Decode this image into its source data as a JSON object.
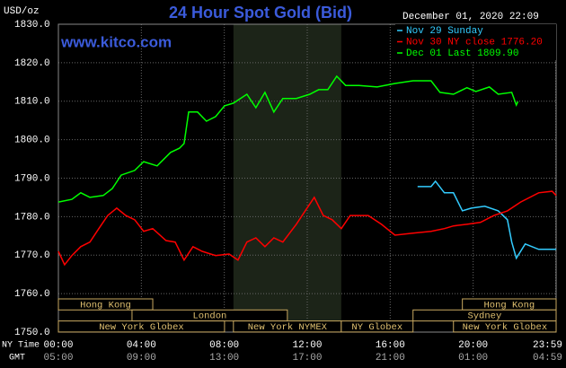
{
  "chart_data": {
    "type": "line",
    "title": "24 Hour Spot Gold (Bid)",
    "website": "www.kitco.com",
    "timestamp": "December 01, 2020 22:09",
    "y_label": "USD/oz",
    "x_label": "NY Time",
    "x2_label": "GMT",
    "xlim": [
      0,
      24
    ],
    "xticks": [
      {
        "value": 0,
        "label": "00:00"
      },
      {
        "value": 4,
        "label": "04:00"
      },
      {
        "value": 8,
        "label": "08:00"
      },
      {
        "value": 12,
        "label": "12:00"
      },
      {
        "value": 16,
        "label": "16:00"
      },
      {
        "value": 20,
        "label": "20:00"
      },
      {
        "value": 23.98,
        "label": "23:59"
      }
    ],
    "x2ticks": [
      {
        "value": 0,
        "label": "05:00"
      },
      {
        "value": 4,
        "label": "09:00"
      },
      {
        "value": 8,
        "label": "13:00"
      },
      {
        "value": 12,
        "label": "17:00"
      },
      {
        "value": 16,
        "label": "21:00"
      },
      {
        "value": 20,
        "label": "01:00"
      },
      {
        "value": 23.98,
        "label": "04:59"
      }
    ],
    "ylim": [
      1750,
      1830
    ],
    "yticks": [
      {
        "value": 1750,
        "label": "1750.0"
      },
      {
        "value": 1760,
        "label": "1760.0"
      },
      {
        "value": 1770,
        "label": "1770.0"
      },
      {
        "value": 1780,
        "label": "1780.0"
      },
      {
        "value": 1790,
        "label": "1790.0"
      },
      {
        "value": 1800,
        "label": "1800.0"
      },
      {
        "value": 1810,
        "label": "1810.0"
      },
      {
        "value": 1820,
        "label": "1820.0"
      },
      {
        "value": 1830,
        "label": "1830.0"
      }
    ],
    "grid": true,
    "shaded_range": [
      8.44,
      13.64
    ],
    "sessions": [
      {
        "label": "Hong Kong",
        "row": 0,
        "start": 0,
        "end": 4.55
      },
      {
        "label": "Hong Kong",
        "row": 0,
        "start": 19.48,
        "end": 24
      },
      {
        "label": "London",
        "row": 1,
        "start": 3.55,
        "end": 11.04
      },
      {
        "label": "Sydney",
        "row": 1,
        "start": 17.1,
        "end": 24
      },
      {
        "label": "New York Globex",
        "row": 2,
        "start": 0,
        "end": 8.01
      },
      {
        "label": "New York NYMEX",
        "row": 2,
        "start": 8.44,
        "end": 13.64
      },
      {
        "label": "NY Globex",
        "row": 2,
        "start": 13.64,
        "end": 17.1
      },
      {
        "label": "New York Globex",
        "row": 2,
        "start": 19.05,
        "end": 24
      }
    ],
    "series": [
      {
        "name": "Nov 29 Sunday",
        "color": "#33ccff",
        "x": [
          17.32,
          17.97,
          18.18,
          18.61,
          19.05,
          19.48,
          19.91,
          20.56,
          21.21,
          21.65,
          21.86,
          22.08,
          22.51,
          23.16,
          24
        ],
        "values": [
          1787.8,
          1787.8,
          1789.2,
          1786.2,
          1786.2,
          1781.5,
          1782.2,
          1782.7,
          1781.5,
          1779.2,
          1773.4,
          1769.2,
          1772.9,
          1771.5,
          1771.5
        ]
      },
      {
        "name": "Nov 30 NY close 1776.20",
        "color": "#ff0000",
        "x": [
          0,
          0.3,
          0.65,
          1.08,
          1.52,
          1.95,
          2.38,
          2.81,
          3.25,
          3.68,
          4.11,
          4.55,
          5.19,
          5.63,
          6.06,
          6.49,
          6.93,
          7.58,
          8.23,
          8.66,
          9.09,
          9.52,
          9.96,
          10.39,
          10.82,
          11.47,
          11.9,
          12.34,
          12.77,
          13.2,
          13.64,
          14.07,
          14.94,
          15.58,
          16.23,
          17.1,
          17.97,
          18.61,
          19.05,
          19.7,
          20.35,
          21,
          21.65,
          22.29,
          23.16,
          23.81,
          24
        ],
        "values": [
          1771,
          1767.5,
          1769.9,
          1772.2,
          1773.4,
          1776.9,
          1780.3,
          1782.2,
          1780.3,
          1779.2,
          1776.2,
          1776.9,
          1773.8,
          1773.4,
          1768.7,
          1772.2,
          1771,
          1769.9,
          1770.3,
          1768.7,
          1773.4,
          1774.5,
          1772.2,
          1774.5,
          1773.4,
          1778,
          1781.5,
          1785,
          1780.3,
          1779.2,
          1776.9,
          1780.3,
          1780.3,
          1778,
          1775.2,
          1775.7,
          1776.2,
          1776.9,
          1777.6,
          1778,
          1778.5,
          1780.3,
          1781.5,
          1783.8,
          1786.2,
          1786.6,
          1785.5
        ]
      },
      {
        "name": "Dec 01 Last 1809.90",
        "color": "#00ff00",
        "x": [
          0,
          0.65,
          1.08,
          1.52,
          2.16,
          2.6,
          3.03,
          3.68,
          4.11,
          4.76,
          5.41,
          5.84,
          6.06,
          6.28,
          6.71,
          7.14,
          7.58,
          8.01,
          8.44,
          9.09,
          9.52,
          9.96,
          10.39,
          10.82,
          11.47,
          12.12,
          12.55,
          12.99,
          13.42,
          13.85,
          14.5,
          15.37,
          16.23,
          17.1,
          17.97,
          18.4,
          19.05,
          19.7,
          20.13,
          20.78,
          21.21,
          21.86,
          22.08,
          22.16
        ],
        "values": [
          1783.8,
          1784.5,
          1786.2,
          1785,
          1785.5,
          1787.3,
          1790.8,
          1792,
          1794.3,
          1793.2,
          1796.7,
          1797.8,
          1799,
          1807.2,
          1807.2,
          1804.8,
          1806,
          1808.8,
          1809.5,
          1811.8,
          1808.3,
          1812.3,
          1807.2,
          1810.7,
          1810.7,
          1811.8,
          1813,
          1813,
          1816.5,
          1814.1,
          1814.1,
          1813.7,
          1814.6,
          1815.3,
          1815.3,
          1812.3,
          1811.8,
          1813.5,
          1812.5,
          1813.7,
          1811.8,
          1812.3,
          1809,
          1809.9
        ]
      }
    ]
  }
}
